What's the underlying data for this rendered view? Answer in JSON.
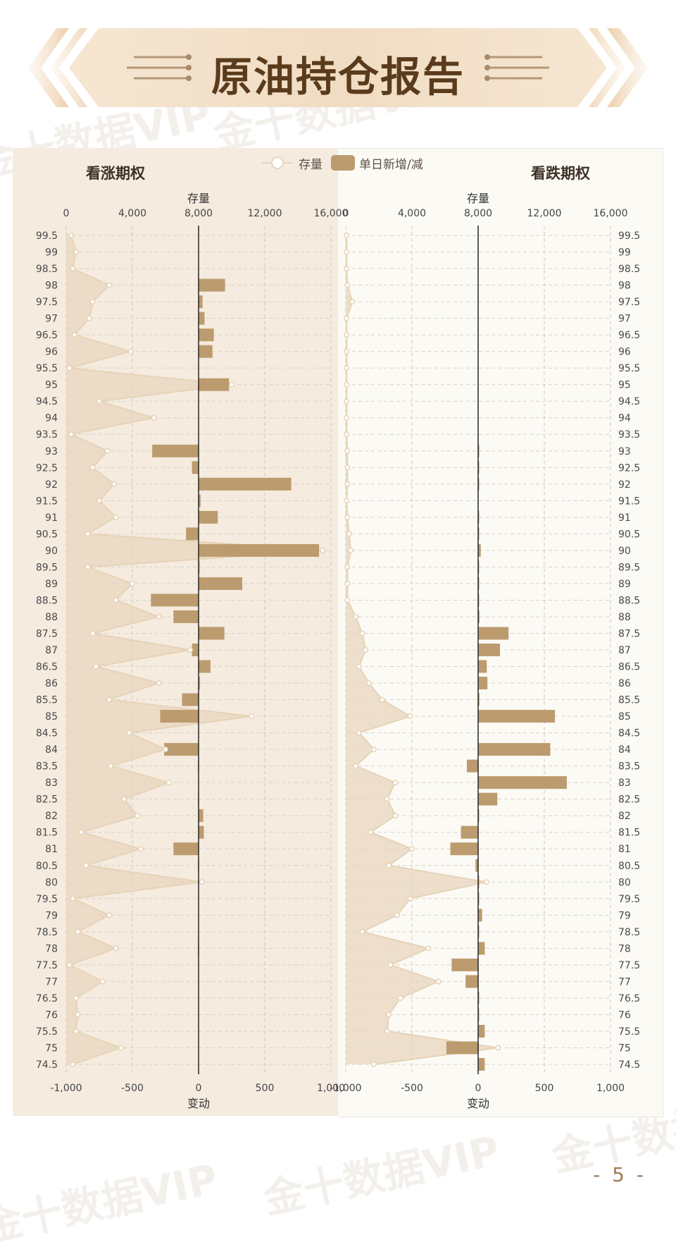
{
  "header": {
    "title": "原油持仓报告"
  },
  "legend": {
    "stock_label": "存量",
    "change_label": "单日新增/减"
  },
  "page": {
    "number": "- 5 -"
  },
  "watermark": {
    "text": "金十数据VIP"
  },
  "colors": {
    "stock_fill": "#e8d6bd",
    "stock_line": "#e6d3b7",
    "bar": "#bc9b6e",
    "bg_call": "#f5ebdf",
    "bg_put": "#fbfaf5",
    "title": "#5a3b1c"
  },
  "chart_data": [
    {
      "type": "bar",
      "title": "看涨期权",
      "categories": [
        "99.5",
        "99",
        "98.5",
        "98",
        "97.5",
        "97",
        "96.5",
        "96",
        "95.5",
        "95",
        "94.5",
        "94",
        "93.5",
        "93",
        "92.5",
        "92",
        "91.5",
        "91",
        "90.5",
        "90",
        "89.5",
        "89",
        "88.5",
        "88",
        "87.5",
        "87",
        "86.5",
        "86",
        "85.5",
        "85",
        "84.5",
        "84",
        "83.5",
        "83",
        "82.5",
        "82",
        "81.5",
        "81",
        "80.5",
        "80",
        "79.5",
        "79",
        "78.5",
        "78",
        "77.5",
        "77",
        "76.5",
        "76",
        "75.5",
        "75",
        "74.5"
      ],
      "stock_axis": {
        "label": "存量",
        "range": [
          0,
          16000
        ],
        "ticks": [
          "0",
          "4,000",
          "8,000",
          "12,000",
          "16,000"
        ]
      },
      "change_axis": {
        "label": "变动",
        "range": [
          -1000,
          1000
        ],
        "ticks": [
          "-1,000",
          "-500",
          "0",
          "500",
          "1,000"
        ]
      },
      "grid": true,
      "series": [
        {
          "name": "存量",
          "kind": "area",
          "values": [
            300,
            600,
            400,
            2600,
            1600,
            1400,
            500,
            3900,
            200,
            10000,
            2000,
            5300,
            300,
            2500,
            1600,
            2900,
            2000,
            3000,
            1300,
            15500,
            1300,
            4000,
            3000,
            5600,
            1600,
            7500,
            1800,
            5600,
            2600,
            11200,
            3800,
            6000,
            2700,
            6200,
            3500,
            4300,
            900,
            4500,
            1200,
            8200,
            400,
            2600,
            700,
            3000,
            200,
            2200,
            600,
            700,
            600,
            3300,
            400
          ]
        },
        {
          "name": "单日新增/减",
          "kind": "bar",
          "values": [
            0,
            0,
            0,
            200,
            30,
            45,
            115,
            105,
            0,
            230,
            0,
            0,
            0,
            -350,
            -50,
            700,
            15,
            145,
            -95,
            910,
            5,
            330,
            -360,
            -190,
            195,
            -50,
            90,
            10,
            -125,
            -290,
            0,
            -260,
            -5,
            0,
            -5,
            35,
            40,
            -190,
            -5,
            0,
            0,
            0,
            0,
            -5,
            0,
            0,
            0,
            0,
            0,
            0,
            0
          ]
        }
      ]
    },
    {
      "type": "bar",
      "title": "看跌期权",
      "categories": [
        "99.5",
        "99",
        "98.5",
        "98",
        "97.5",
        "97",
        "96.5",
        "96",
        "95.5",
        "95",
        "94.5",
        "94",
        "93.5",
        "93",
        "92.5",
        "92",
        "91.5",
        "91",
        "90.5",
        "90",
        "89.5",
        "89",
        "88.5",
        "88",
        "87.5",
        "87",
        "86.5",
        "86",
        "85.5",
        "85",
        "84.5",
        "84",
        "83.5",
        "83",
        "82.5",
        "82",
        "81.5",
        "81",
        "80.5",
        "80",
        "79.5",
        "79",
        "78.5",
        "78",
        "77.5",
        "77",
        "76.5",
        "76",
        "75.5",
        "75",
        "74.5"
      ],
      "stock_axis": {
        "label": "存量",
        "range": [
          0,
          16000
        ],
        "ticks": [
          "0",
          "4,000",
          "8,000",
          "12,000",
          "16,000"
        ]
      },
      "change_axis": {
        "label": "变动",
        "range": [
          -1000,
          1000
        ],
        "ticks": [
          "-1,000",
          "-500",
          "0",
          "500",
          "1,000"
        ]
      },
      "grid": true,
      "series": [
        {
          "name": "存量",
          "kind": "area",
          "values": [
            50,
            50,
            50,
            100,
            400,
            50,
            50,
            50,
            50,
            50,
            50,
            50,
            50,
            100,
            100,
            100,
            50,
            100,
            200,
            300,
            100,
            100,
            100,
            600,
            1000,
            1200,
            800,
            1400,
            2200,
            3900,
            800,
            1700,
            600,
            3000,
            2500,
            3000,
            1500,
            4000,
            2600,
            8500,
            3900,
            3100,
            1000,
            5000,
            2700,
            5600,
            3300,
            2600,
            2500,
            9200,
            1700
          ]
        },
        {
          "name": "单日新增/减",
          "kind": "bar",
          "values": [
            0,
            0,
            0,
            0,
            0,
            0,
            0,
            0,
            0,
            0,
            0,
            0,
            0,
            5,
            5,
            5,
            0,
            5,
            5,
            20,
            5,
            5,
            5,
            10,
            230,
            165,
            65,
            70,
            10,
            580,
            0,
            545,
            -85,
            670,
            145,
            5,
            -130,
            -210,
            -20,
            5,
            5,
            30,
            5,
            50,
            -200,
            -95,
            5,
            5,
            50,
            -240,
            50
          ]
        }
      ]
    }
  ]
}
